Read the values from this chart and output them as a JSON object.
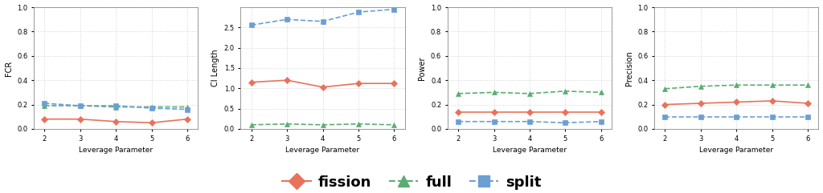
{
  "x": [
    2,
    3,
    4,
    5,
    6
  ],
  "plots": [
    {
      "ylabel": "FCR",
      "ylim": [
        0.0,
        1.0
      ],
      "yticks": [
        0.0,
        0.2,
        0.4,
        0.6,
        0.8,
        1.0
      ],
      "fission": [
        0.08,
        0.08,
        0.06,
        0.05,
        0.08
      ],
      "full": [
        0.19,
        0.19,
        0.18,
        0.18,
        0.18
      ],
      "split": [
        0.21,
        0.19,
        0.19,
        0.17,
        0.16
      ]
    },
    {
      "ylabel": "CI Length",
      "ylim": [
        0.0,
        3.0
      ],
      "yticks": [
        0.0,
        0.5,
        1.0,
        1.5,
        2.0,
        2.5
      ],
      "fission": [
        1.15,
        1.2,
        1.03,
        1.12,
        1.12
      ],
      "full": [
        0.1,
        0.12,
        0.1,
        0.12,
        0.1
      ],
      "split": [
        2.56,
        2.7,
        2.65,
        2.88,
        2.95
      ]
    },
    {
      "ylabel": "Power",
      "ylim": [
        0.0,
        1.0
      ],
      "yticks": [
        0.0,
        0.2,
        0.4,
        0.6,
        0.8,
        1.0
      ],
      "fission": [
        0.14,
        0.14,
        0.14,
        0.14,
        0.14
      ],
      "full": [
        0.29,
        0.3,
        0.29,
        0.31,
        0.3
      ],
      "split": [
        0.06,
        0.06,
        0.06,
        0.05,
        0.06
      ]
    },
    {
      "ylabel": "Precision",
      "ylim": [
        0.0,
        1.0
      ],
      "yticks": [
        0.0,
        0.2,
        0.4,
        0.6,
        0.8,
        1.0
      ],
      "fission": [
        0.2,
        0.21,
        0.22,
        0.23,
        0.21
      ],
      "full": [
        0.33,
        0.35,
        0.36,
        0.36,
        0.36
      ],
      "split": [
        0.1,
        0.1,
        0.1,
        0.1,
        0.1
      ]
    }
  ],
  "colors": {
    "fission": "#E8735A",
    "full": "#5BAD72",
    "split": "#6B9FD4"
  },
  "line_styles": {
    "fission": "-",
    "full": "--",
    "split": "--"
  },
  "markers": {
    "fission": "D",
    "full": "^",
    "split": "s"
  },
  "marker_sizes": {
    "fission": 4,
    "full": 4,
    "split": 4
  },
  "legend_marker_sizes": {
    "fission": 10,
    "full": 10,
    "split": 10
  },
  "legend": {
    "fission": "fission",
    "full": "full",
    "split": "split"
  },
  "xlabel": "Leverage Parameter",
  "figure_bg": "#ffffff",
  "axes_bg": "#ffffff",
  "grid_color": "#cccccc",
  "grid_style": ":"
}
